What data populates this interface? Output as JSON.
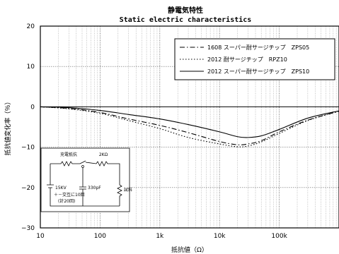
{
  "chart_data": {
    "type": "line",
    "title": "静電気特性",
    "subtitle": "Static electric characteristics",
    "xlabel": "抵抗値（Ω）",
    "ylabel": "抵抗値変化率（％）",
    "xscale": "log",
    "xlim": [
      10,
      1000000
    ],
    "ylim": [
      -30,
      20
    ],
    "x_ticks": [
      10,
      100,
      1000,
      10000,
      100000
    ],
    "x_tick_labels": [
      "10",
      "100",
      "1k",
      "10k",
      "100k"
    ],
    "y_ticks": [
      20,
      10,
      0,
      -10,
      -20,
      -30
    ],
    "y_tick_labels": [
      "20",
      "10",
      "0",
      "−10",
      "−20",
      "−30"
    ],
    "grid": true,
    "legend_position": "top-right",
    "series": [
      {
        "name": "1608 スーパー耐サージチップ　ZPS05",
        "style": "dash-dot",
        "color": "#000000",
        "x": [
          10,
          30,
          100,
          300,
          1000,
          3000,
          10000,
          20000,
          30000,
          50000,
          100000,
          300000,
          1000000
        ],
        "y": [
          0,
          -0.4,
          -1.4,
          -3.0,
          -4.6,
          -6.4,
          -8.6,
          -9.4,
          -9.2,
          -8.4,
          -6.2,
          -3.3,
          -1.1
        ]
      },
      {
        "name": "2012 耐サージチップ　RPZ10",
        "style": "dotted",
        "color": "#000000",
        "x": [
          10,
          30,
          100,
          300,
          1000,
          3000,
          10000,
          20000,
          30000,
          50000,
          100000,
          300000,
          1000000
        ],
        "y": [
          0,
          -0.5,
          -1.6,
          -3.4,
          -5.4,
          -7.6,
          -9.2,
          -9.9,
          -9.7,
          -8.7,
          -6.6,
          -3.4,
          -1.1
        ]
      },
      {
        "name": "2012 スーパー耐サージチップ　ZPS10",
        "style": "solid",
        "color": "#000000",
        "x": [
          10,
          30,
          100,
          300,
          1000,
          3000,
          10000,
          20000,
          30000,
          50000,
          100000,
          300000,
          1000000
        ],
        "y": [
          0,
          -0.2,
          -0.9,
          -1.9,
          -3.0,
          -4.4,
          -6.2,
          -7.4,
          -7.6,
          -7.2,
          -5.6,
          -2.8,
          -1.0
        ]
      }
    ],
    "inset_circuit": {
      "labels": {
        "charging_resistor": "充電抵抗",
        "resistor_value": "2KΩ",
        "voltage": "15KV",
        "capacitor": "330pF",
        "sample": "試料",
        "note_line1": "＋－交互に10回",
        "note_line2": "(計20回)"
      }
    }
  }
}
